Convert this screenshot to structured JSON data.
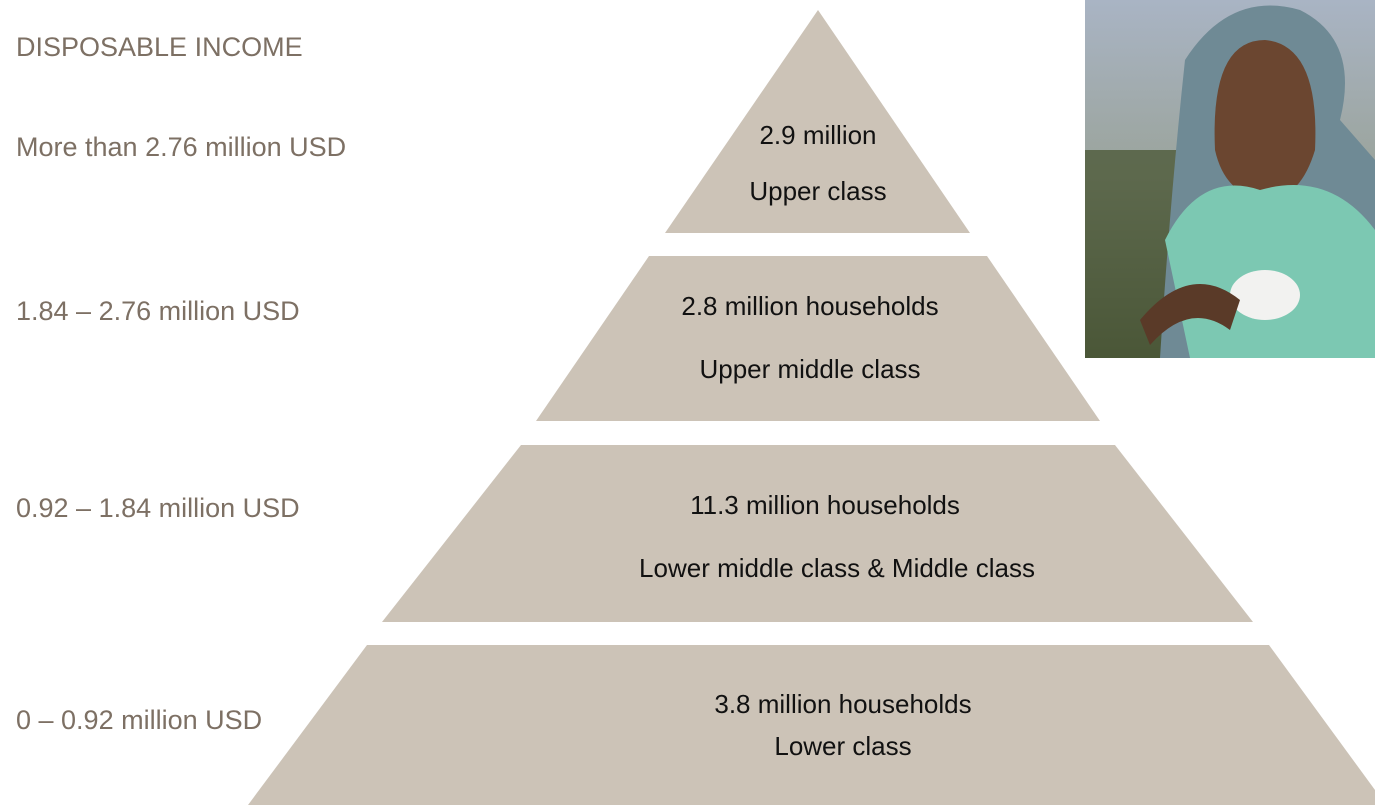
{
  "title": "DISPOSABLE INCOME",
  "levels": [
    {
      "income": "More than 2.76 million USD",
      "count": "2.9 million",
      "class": "Upper class"
    },
    {
      "income": "1.84 – 2.76 million USD",
      "count": "2.8 million households",
      "class": "Upper middle class"
    },
    {
      "income": "0.92 – 1.84 million USD",
      "count": "11.3 million households",
      "class": "Lower middle class & Middle class"
    },
    {
      "income": "0 – 0.92 million USD",
      "count": "3.8 million households",
      "class": "Lower class"
    }
  ]
}
